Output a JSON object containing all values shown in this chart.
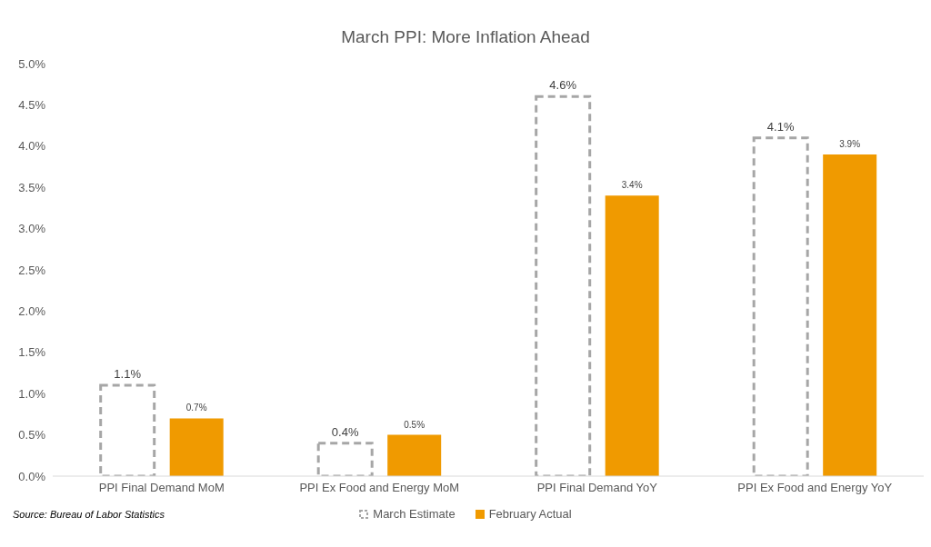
{
  "chart_data": {
    "type": "bar",
    "title": "March PPI: More Inflation Ahead",
    "categories": [
      "PPI Final Demand MoM",
      "PPI Ex Food and Energy MoM",
      "PPI Final Demand YoY",
      "PPI Ex Food and Energy YoY"
    ],
    "series": [
      {
        "name": "March Estimate",
        "color": "#a6a6a6",
        "line_style": "dashed",
        "values": [
          1.1,
          0.4,
          4.6,
          4.1
        ],
        "value_labels": [
          "1.1%",
          "0.4%",
          "4.6%",
          "4.1%"
        ]
      },
      {
        "name": "February Actual",
        "color": "#f09a00",
        "values": [
          0.7,
          0.5,
          3.4,
          3.9
        ],
        "value_labels": [
          "0.7%",
          "0.5%",
          "3.4%",
          "3.9%"
        ]
      }
    ],
    "ylim": [
      0,
      5
    ],
    "yticks": [
      {
        "value": 0,
        "label": "0.0%"
      },
      {
        "value": 0.5,
        "label": "0.5%"
      },
      {
        "value": 1,
        "label": "1.0%"
      },
      {
        "value": 1.5,
        "label": "1.5%"
      },
      {
        "value": 2,
        "label": "2.0%"
      },
      {
        "value": 2.5,
        "label": "2.5%"
      },
      {
        "value": 3,
        "label": "3.0%"
      },
      {
        "value": 3.5,
        "label": "3.5%"
      },
      {
        "value": 4,
        "label": "4.0%"
      },
      {
        "value": 4.5,
        "label": "4.5%"
      },
      {
        "value": 5,
        "label": "5.0%"
      }
    ],
    "grid": false,
    "legend": "bottom",
    "annotations": [
      "Source: Bureau of Labor Statistics"
    ]
  }
}
